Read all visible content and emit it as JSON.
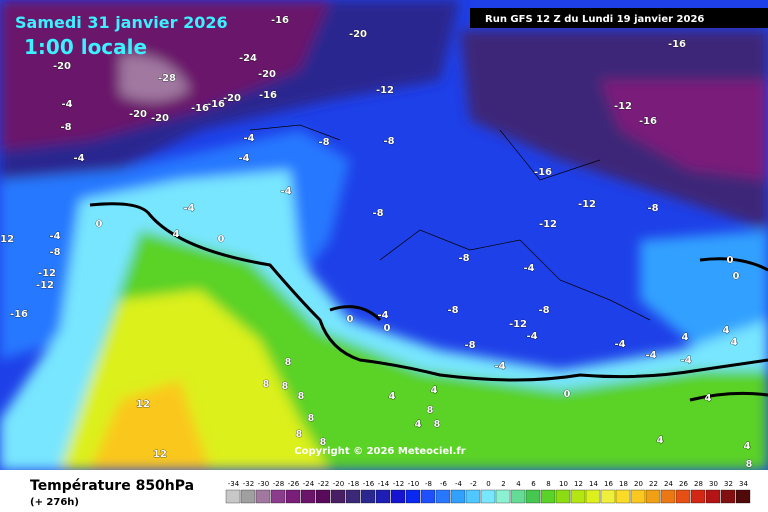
{
  "header": {
    "date": "Samedi 31 janvier 2026",
    "time": "1:00 locale",
    "run": "Run GFS 12 Z du Lundi 19 janvier 2026"
  },
  "map": {
    "labels": [
      -16,
      -20,
      -20,
      -24,
      -28,
      -20,
      -16,
      -20,
      -16,
      -16,
      -20,
      -20,
      -4,
      -8,
      -4,
      -4,
      -4,
      -8,
      -8,
      -12,
      -12,
      -16,
      -16,
      -16,
      -12,
      -8,
      -12,
      -8,
      -4,
      -4,
      0,
      4,
      0,
      -4,
      -8,
      -12,
      -12,
      -12,
      -16,
      0,
      0,
      -8,
      -4,
      0,
      -4,
      0,
      -8,
      -8,
      -12,
      -4,
      4,
      4,
      4,
      -8,
      -4,
      -4,
      -4,
      -4,
      8,
      8,
      8,
      8,
      4,
      4,
      0,
      8,
      4,
      8,
      8,
      8,
      8,
      4,
      4,
      8,
      12,
      12,
      4
    ],
    "copyright": "Copyright © 2026 Meteociel.fr"
  },
  "footer": {
    "title": "Température 850hPa",
    "lead": "(+ 276h)"
  },
  "legend": {
    "ticks": [
      -34,
      -32,
      -30,
      -28,
      -26,
      -24,
      -22,
      -20,
      -18,
      -16,
      -14,
      -12,
      -10,
      -8,
      -6,
      -4,
      -2,
      0,
      2,
      4,
      6,
      8,
      10,
      12,
      14,
      16,
      18,
      20,
      22,
      24,
      26,
      28,
      30,
      32,
      34
    ],
    "colors": [
      "#c8c8c8",
      "#a0a0a0",
      "#a078a0",
      "#8c3c8c",
      "#7a1e7a",
      "#6a146a",
      "#5a0a5a",
      "#4a1e64",
      "#3c2878",
      "#2a2890",
      "#1e1eb4",
      "#1414d2",
      "#0a28f0",
      "#1e50ff",
      "#2878ff",
      "#32a0ff",
      "#50c8ff",
      "#78e6ff",
      "#8cf0d2",
      "#64dc96",
      "#46c850",
      "#5ad228",
      "#8cdc14",
      "#b4e614",
      "#dcf01e",
      "#f0f03c",
      "#fadc28",
      "#fac81e",
      "#f0a014",
      "#eb7814",
      "#e65014",
      "#d22814",
      "#b41414",
      "#821010",
      "#500a0a"
    ]
  }
}
